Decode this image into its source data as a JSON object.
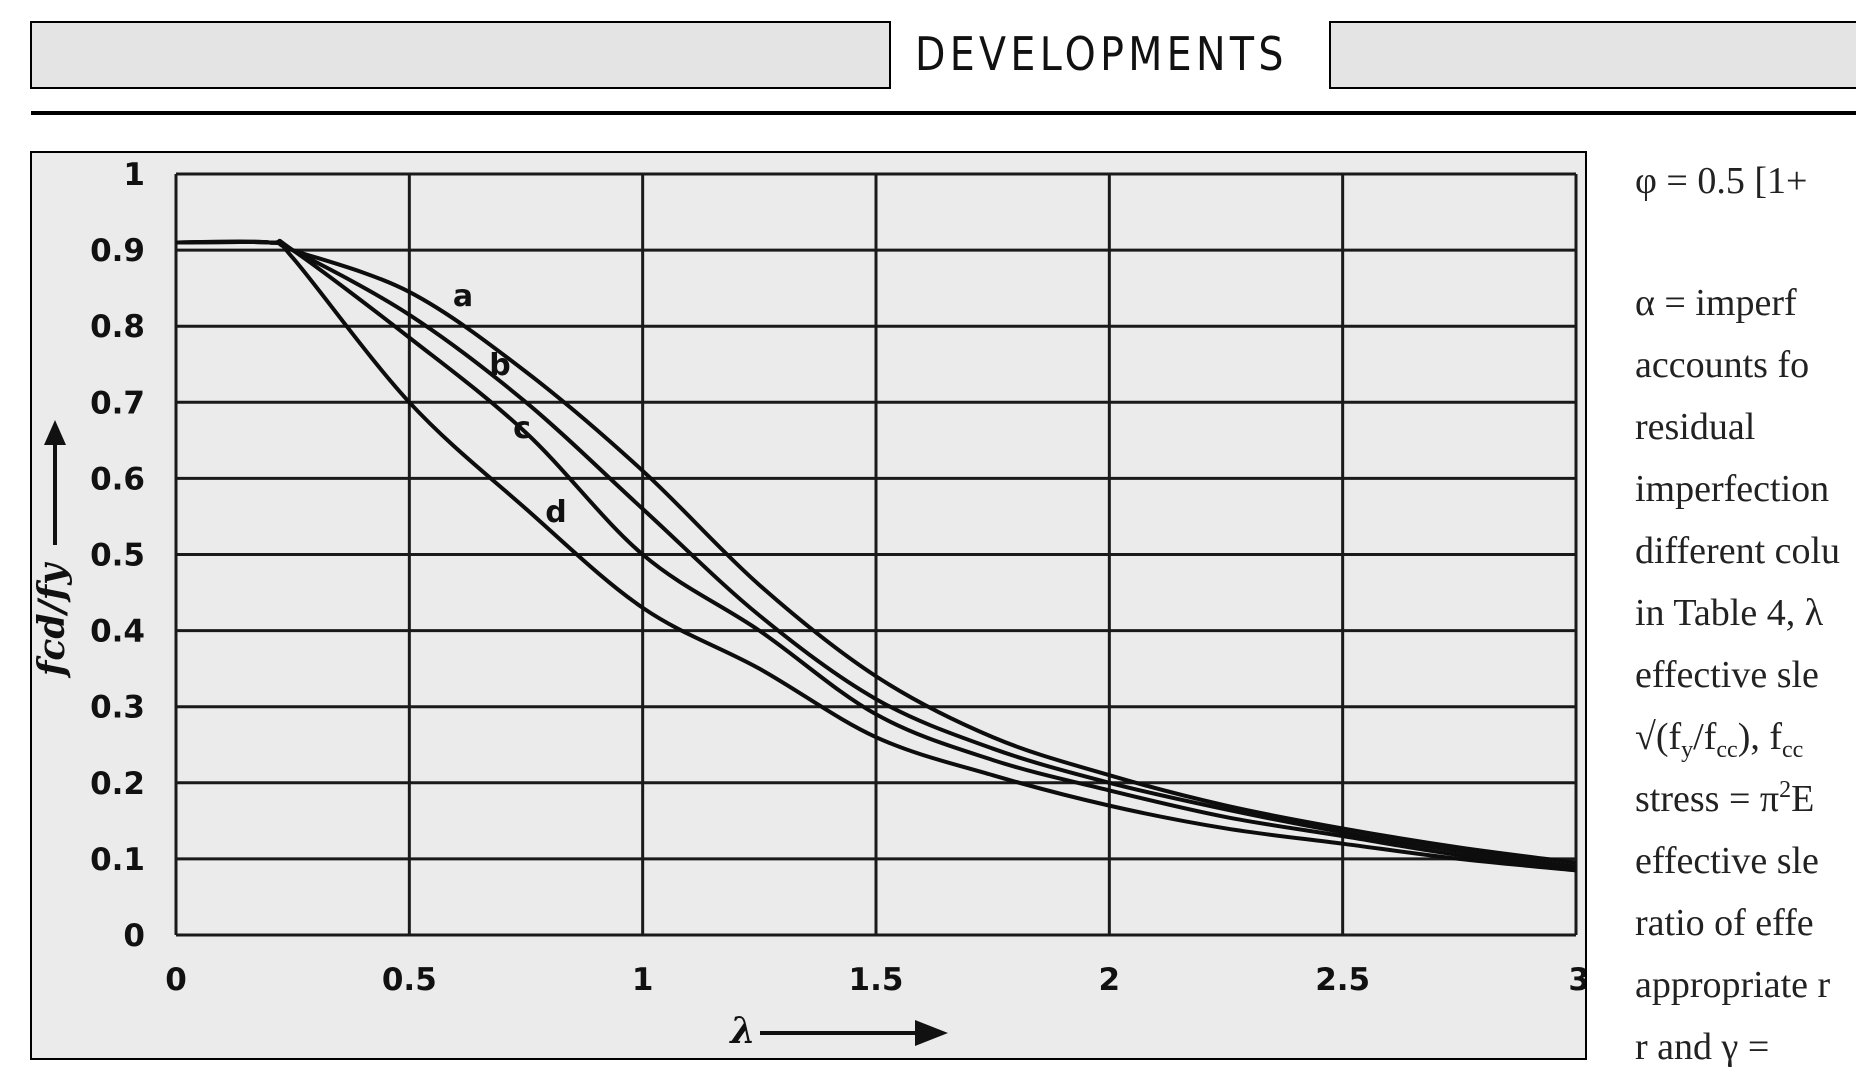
{
  "header": {
    "title": "DEVELOPMENTS"
  },
  "body_text": {
    "equation": "φ = 0.5 [1+",
    "lines": [
      "α = imperf",
      "accounts fo",
      "residual",
      "imperfection",
      "different colu",
      "in Table 4, λ",
      "effective sle",
      "√(f",
      "stress = π",
      "effective sle",
      "ratio of effe",
      "appropriate r",
      "r and γ"
    ],
    "frag_sqrt": {
      "pre": "√(f",
      "sub1": "y",
      "mid": "/f",
      "sub2": "cc",
      "post": "), f",
      "sub3": "cc"
    },
    "frag_stress": {
      "pre": "stress = π",
      "sup": "2",
      "post": "E"
    },
    "frag_last": {
      "pre": "r and γ",
      "post": " = "
    }
  },
  "colors": {
    "page_bg": "#ffffff",
    "header_box_fill": "#e4e4e4",
    "figure_bg": "#ebebeb",
    "ink": "#111111"
  },
  "chart_data": {
    "type": "line",
    "title": "",
    "xlabel": "λ",
    "ylabel": "fcd/fy",
    "xlim": [
      0,
      3
    ],
    "ylim": [
      0,
      1
    ],
    "x_ticks": [
      "0",
      "0.5",
      "1",
      "1.5",
      "2",
      "2.5",
      "3"
    ],
    "y_ticks": [
      "0",
      "0.1",
      "0.2",
      "0.3",
      "0.4",
      "0.5",
      "0.6",
      "0.7",
      "0.8",
      "0.9",
      "1"
    ],
    "grid": true,
    "legend": "inline curve labels a, b, c, d",
    "x": [
      0,
      0.2,
      0.25,
      0.5,
      0.75,
      1.0,
      1.25,
      1.5,
      1.75,
      2.0,
      2.25,
      2.5,
      2.75,
      3.0
    ],
    "series": [
      {
        "name": "a",
        "values": [
          0.91,
          0.91,
          0.9,
          0.845,
          0.74,
          0.61,
          0.46,
          0.34,
          0.26,
          0.21,
          0.17,
          0.14,
          0.115,
          0.095
        ]
      },
      {
        "name": "b",
        "values": [
          0.91,
          0.91,
          0.9,
          0.815,
          0.7,
          0.56,
          0.42,
          0.31,
          0.245,
          0.2,
          0.165,
          0.135,
          0.11,
          0.09
        ]
      },
      {
        "name": "c",
        "values": [
          0.91,
          0.91,
          0.9,
          0.785,
          0.66,
          0.5,
          0.4,
          0.29,
          0.23,
          0.19,
          0.155,
          0.13,
          0.105,
          0.088
        ]
      },
      {
        "name": "d",
        "values": [
          0.91,
          0.91,
          0.89,
          0.7,
          0.56,
          0.43,
          0.35,
          0.26,
          0.21,
          0.17,
          0.14,
          0.12,
          0.1,
          0.085
        ]
      }
    ]
  }
}
